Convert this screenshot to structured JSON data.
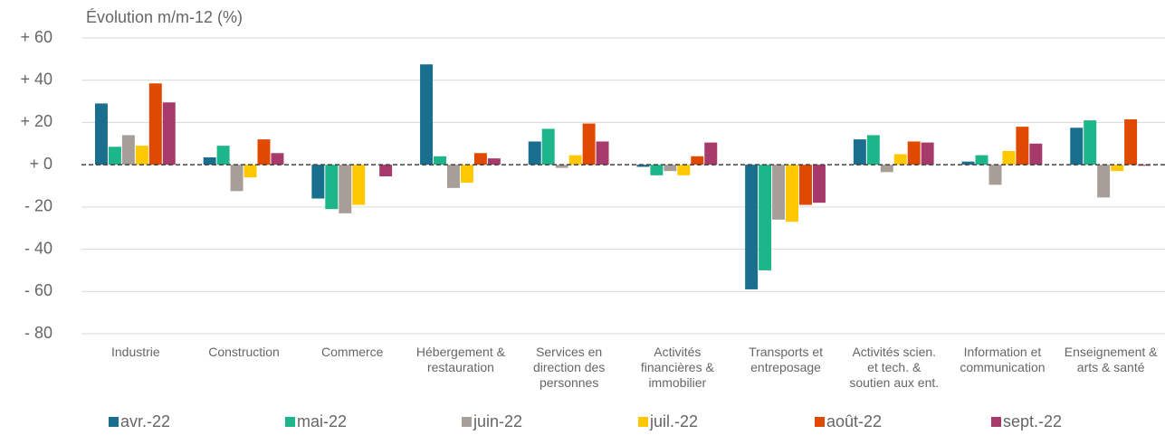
{
  "chart_data": {
    "type": "bar",
    "title": "Évolution m/m-12 (%)",
    "categories": [
      "Industrie",
      "Construction",
      "Commerce",
      "Hébergement &\nrestauration",
      "Services en\ndirection des\npersonnes",
      "Activités\nfinancières &\nimmobilier",
      "Transports et\nentreposage",
      "Activités scien.\net tech. &\nsoutien aux ent.",
      "Information et\ncommunication",
      "Enseignement &\narts & santé"
    ],
    "series": [
      {
        "name": "avr.-22",
        "color": "#1a6e8e",
        "values": [
          29,
          3.5,
          -16,
          47.5,
          11,
          -1,
          -59,
          12,
          1.5,
          17.5
        ]
      },
      {
        "name": "mai-22",
        "color": "#1db58a",
        "values": [
          8.5,
          9,
          -21,
          4,
          17,
          -5,
          -50,
          14,
          4.5,
          21
        ]
      },
      {
        "name": "juin-22",
        "color": "#a79e97",
        "values": [
          14,
          -12.5,
          -23,
          -11,
          -1.5,
          -3,
          -26,
          -3.5,
          -9.5,
          -15.5
        ]
      },
      {
        "name": "juil.-22",
        "color": "#ffc800",
        "values": [
          9,
          -6,
          -19,
          -8.5,
          4.5,
          -5,
          -27,
          5,
          6.5,
          -3
        ]
      },
      {
        "name": "août-22",
        "color": "#e04a00",
        "values": [
          38.5,
          12,
          0,
          5.5,
          19.5,
          4,
          -19,
          11,
          18,
          21.5
        ]
      },
      {
        "name": "sept.-22",
        "color": "#a63a6a",
        "values": [
          29.5,
          5.5,
          -5.5,
          3,
          11,
          10.5,
          -18,
          10.5,
          10,
          -0.5
        ]
      }
    ],
    "ylim": [
      -80,
      60
    ],
    "yticks": [
      {
        "value": -80,
        "label": "- 80"
      },
      {
        "value": -60,
        "label": "- 60"
      },
      {
        "value": -40,
        "label": "- 40"
      },
      {
        "value": -20,
        "label": "- 20"
      },
      {
        "value": 0,
        "label": "+ 0"
      },
      {
        "value": 20,
        "label": "+ 20"
      },
      {
        "value": 40,
        "label": "+ 40"
      },
      {
        "value": 60,
        "label": "+ 60"
      }
    ],
    "grid": true,
    "legend": "bottom"
  }
}
